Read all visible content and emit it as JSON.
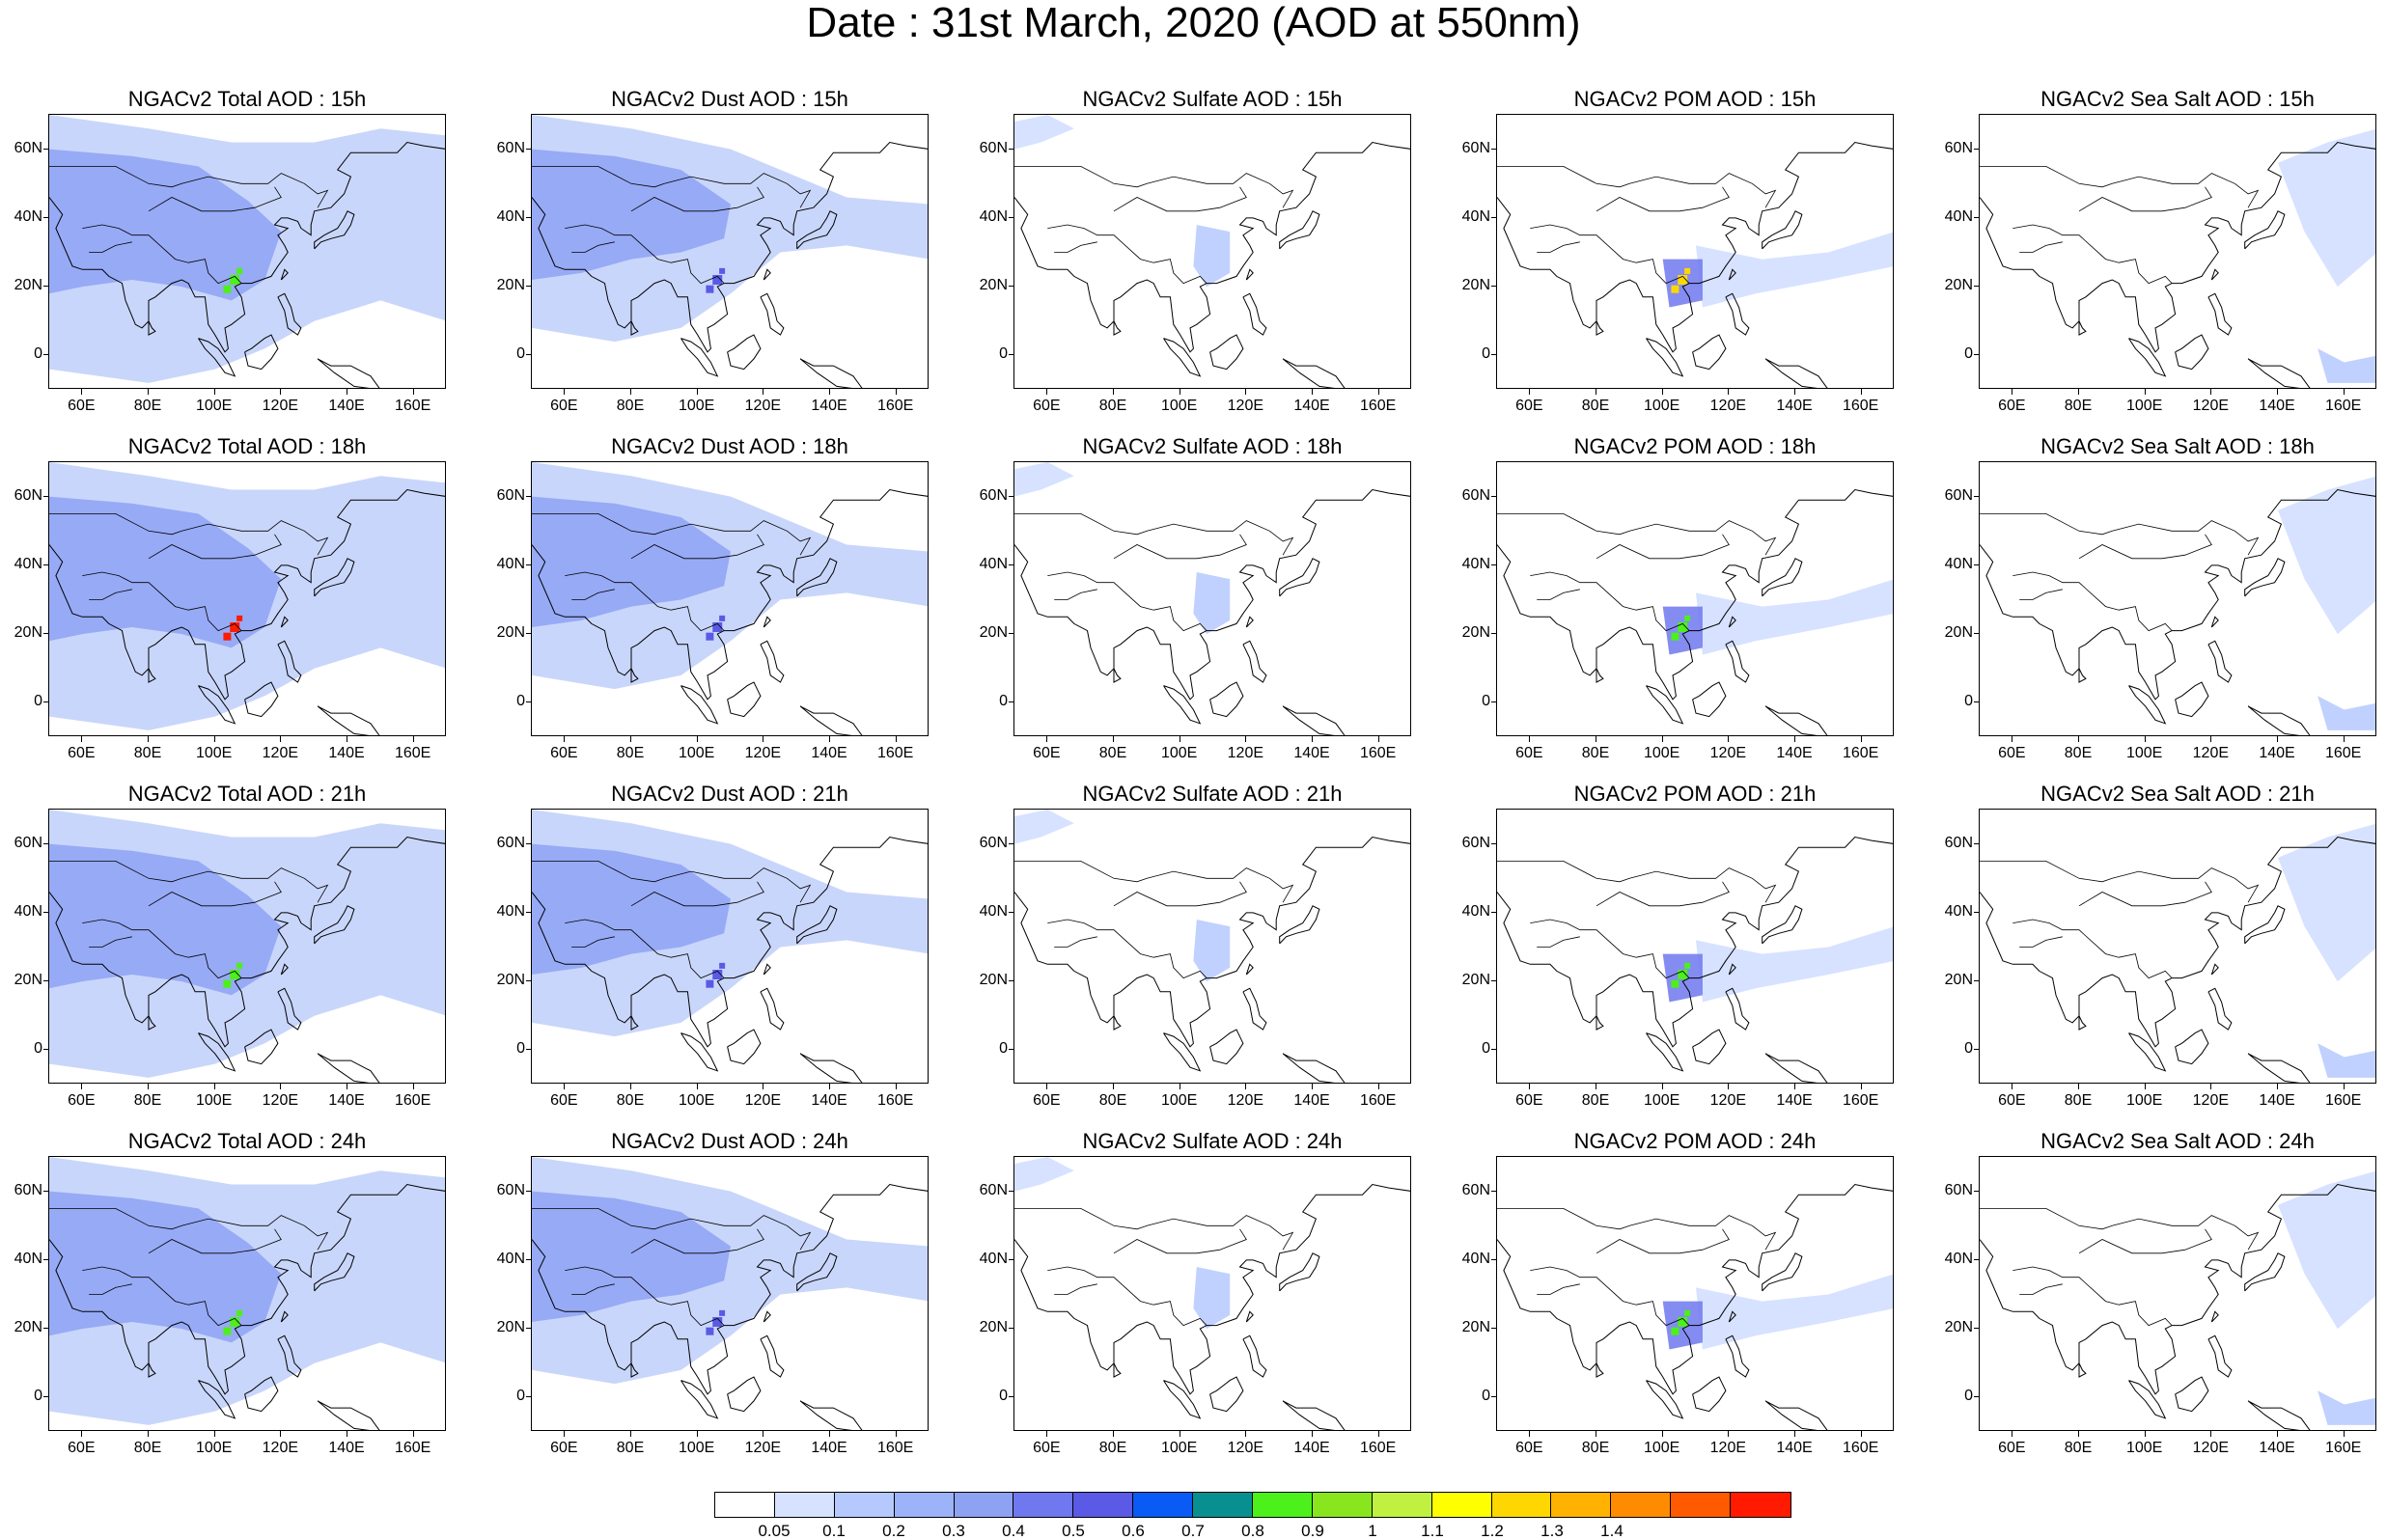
{
  "title": "Date : 31st March, 2020 (AOD at 550nm)",
  "hours": [
    "15h",
    "18h",
    "21h",
    "24h"
  ],
  "species": [
    {
      "key": "total",
      "color": "#8ea2f4"
    },
    {
      "key": "dust",
      "color": "#8ea2f4"
    },
    {
      "key": "sulfate",
      "color": "#c9d6fb"
    },
    {
      "key": "pom",
      "color": "#c9d6fb"
    },
    {
      "key": "seasalt",
      "color": "#c9d6fb"
    }
  ],
  "panel_titles": [
    [
      "NGACv2 Total AOD : 15h",
      "NGACv2 Dust AOD : 15h",
      "NGACv2 Sulfate AOD : 15h",
      "NGACv2 POM AOD : 15h",
      "NGACv2 Sea Salt AOD : 15h"
    ],
    [
      "NGACv2 Total AOD : 18h",
      "NGACv2 Dust AOD : 18h",
      "NGACv2 Sulfate AOD : 18h",
      "NGACv2 POM AOD : 18h",
      "NGACv2 Sea Salt AOD : 18h"
    ],
    [
      "NGACv2 Total AOD : 21h",
      "NGACv2 Dust AOD : 21h",
      "NGACv2 Sulfate AOD : 21h",
      "NGACv2 POM AOD : 21h",
      "NGACv2 Sea Salt AOD : 21h"
    ],
    [
      "NGACv2 Total AOD : 24h",
      "NGACv2 Dust AOD : 24h",
      "NGACv2 Sulfate AOD : 24h",
      "NGACv2 POM AOD : 24h",
      "NGACv2 Sea Salt  AOD : 24h"
    ]
  ],
  "axes": {
    "lon_range": [
      50,
      170
    ],
    "lat_range": [
      -10,
      70
    ],
    "lon_ticks": [
      60,
      80,
      100,
      120,
      140,
      160
    ],
    "lon_tick_labels": [
      "60E",
      "80E",
      "100E",
      "120E",
      "140E",
      "160E"
    ],
    "lat_ticks": [
      60,
      40,
      20,
      0
    ],
    "lat_tick_labels": [
      "60N",
      "40N",
      "20N",
      "0"
    ]
  },
  "colorbar": {
    "colors": [
      "#ffffff",
      "#d6e2ff",
      "#b5c9ff",
      "#9cb2f9",
      "#8ea2f4",
      "#6f78ee",
      "#5a5ae6",
      "#0a5af5",
      "#089090",
      "#4cf01a",
      "#88e51e",
      "#c0f040",
      "#ffff00",
      "#ffd700",
      "#ffb300",
      "#ff8c00",
      "#ff5a00",
      "#ff1a00"
    ],
    "labels": [
      "0.05",
      "0.1",
      "0.2",
      "0.3",
      "0.4",
      "0.5",
      "0.6",
      "0.7",
      "0.8",
      "0.9",
      "1",
      "1.1",
      "1.2",
      "1.3",
      "1.4"
    ]
  },
  "aod_fields": {
    "total": {
      "background": "#c9d6fb",
      "core": "#8ea2f4",
      "hotspot": [
        "#4cf01a",
        "#ff1a00",
        "#4cf01a",
        "#4cf01a"
      ]
    },
    "dust": {
      "background": "#c9d6fb",
      "core": "#8ea2f4",
      "hotspot": [
        "#5a5ae6",
        "#5a5ae6",
        "#5a5ae6",
        "#5a5ae6"
      ]
    },
    "sulfate": {
      "background": "#d6e2ff",
      "core": "#b5c9ff"
    },
    "pom": {
      "background": "#d6e2ff",
      "core": "#6f78ee",
      "hotspot": [
        "#ffd700",
        "#4cf01a",
        "#4cf01a",
        "#4cf01a"
      ]
    },
    "seasalt": {
      "background": "#d6e2ff",
      "core": "#b5c9ff"
    }
  }
}
